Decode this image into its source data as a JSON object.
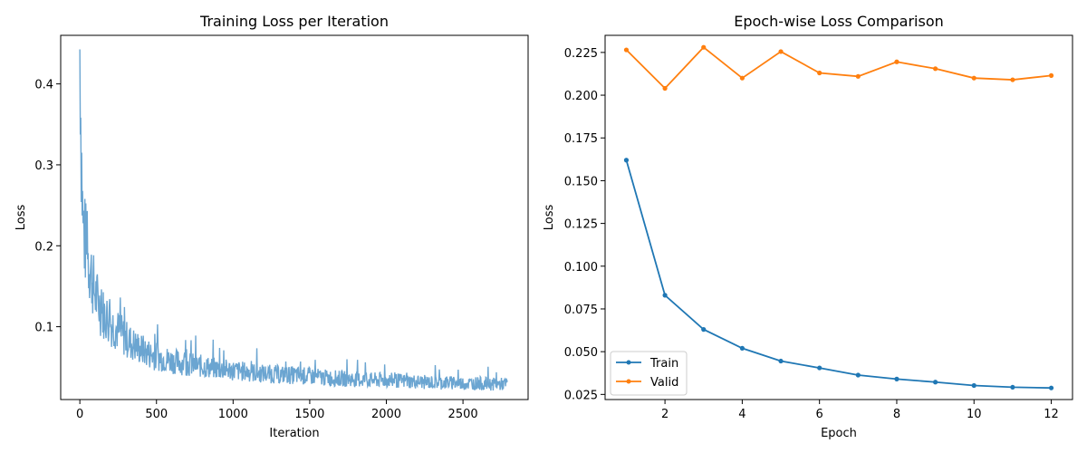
{
  "figure": {
    "left": {
      "title": "Training Loss per Iteration"
    },
    "right": {
      "title": "Epoch-wise Loss Comparison"
    }
  },
  "chart_data": [
    {
      "type": "line",
      "title": "Training Loss per Iteration",
      "xlabel": "Iteration",
      "ylabel": "Loss",
      "xlim": [
        -125,
        2925
      ],
      "ylim": [
        0.01,
        0.46
      ],
      "xticks": [
        0,
        500,
        1000,
        1500,
        2000,
        2500
      ],
      "yticks": [
        0.1,
        0.2,
        0.3,
        0.4
      ],
      "grid": false,
      "series": [
        {
          "color": "#5b9bcc",
          "x": [
            0,
            3,
            6,
            10,
            15,
            20,
            30,
            40,
            50,
            60,
            70,
            80,
            90,
            100,
            120,
            140,
            160,
            180,
            200,
            250,
            300,
            350,
            400,
            450,
            500,
            600,
            700,
            800,
            900,
            1000,
            1100,
            1200,
            1300,
            1400,
            1500,
            1600,
            1700,
            1800,
            1900,
            2000,
            2100,
            2200,
            2300,
            2400,
            2500,
            2600,
            2700,
            2790
          ],
          "y": [
            0.445,
            0.43,
            0.37,
            0.32,
            0.27,
            0.23,
            0.21,
            0.2,
            0.19,
            0.18,
            0.17,
            0.16,
            0.15,
            0.14,
            0.13,
            0.12,
            0.115,
            0.11,
            0.105,
            0.095,
            0.085,
            0.078,
            0.072,
            0.067,
            0.063,
            0.058,
            0.054,
            0.051,
            0.048,
            0.046,
            0.044,
            0.042,
            0.041,
            0.04,
            0.039,
            0.037,
            0.036,
            0.035,
            0.034,
            0.034,
            0.033,
            0.032,
            0.031,
            0.031,
            0.03,
            0.03,
            0.029,
            0.029
          ]
        }
      ]
    },
    {
      "type": "line",
      "title": "Epoch-wise Loss Comparison",
      "xlabel": "Epoch",
      "ylabel": "Loss",
      "xlim": [
        0.45,
        12.55
      ],
      "ylim": [
        0.022,
        0.235
      ],
      "xticks": [
        2,
        4,
        6,
        8,
        10,
        12
      ],
      "yticks": [
        0.025,
        0.05,
        0.075,
        0.1,
        0.125,
        0.15,
        0.175,
        0.2,
        0.225
      ],
      "grid": false,
      "legend": "lower-left",
      "x": [
        1,
        2,
        3,
        4,
        5,
        6,
        7,
        8,
        9,
        10,
        11,
        12
      ],
      "series": [
        {
          "name": "Train",
          "color": "#1f77b4",
          "values": [
            0.162,
            0.083,
            0.063,
            0.052,
            0.0445,
            0.0405,
            0.0363,
            0.034,
            0.0322,
            0.0302,
            0.0292,
            0.0288
          ]
        },
        {
          "name": "Valid",
          "color": "#ff7f0e",
          "values": [
            0.2265,
            0.204,
            0.228,
            0.21,
            0.2255,
            0.213,
            0.211,
            0.2195,
            0.2155,
            0.21,
            0.209,
            0.2115
          ]
        }
      ]
    }
  ]
}
